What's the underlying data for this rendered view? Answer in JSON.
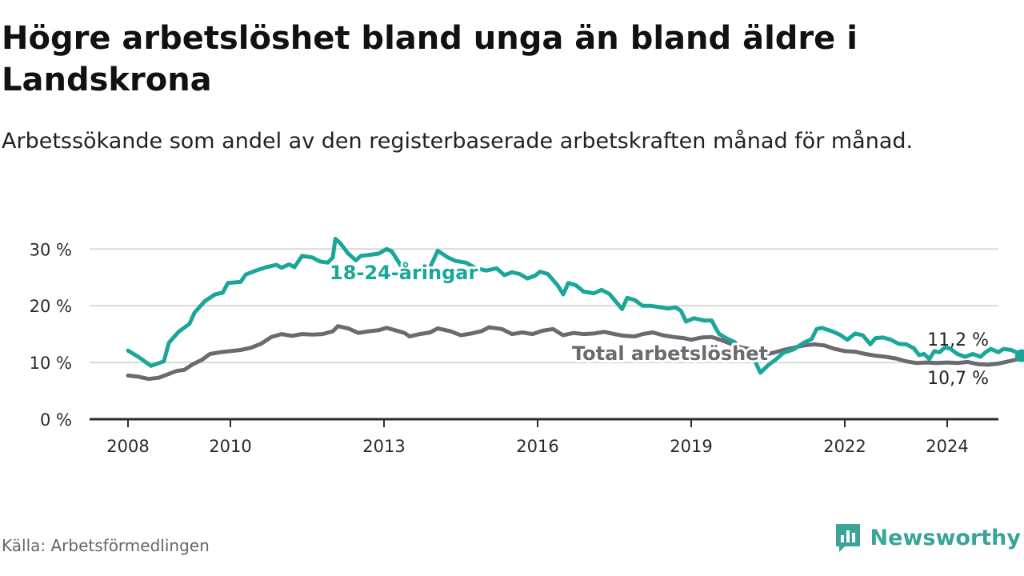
{
  "title": "Högre arbetslöshet bland unga än bland äldre i Landskrona",
  "subtitle": "Arbetssökande som andel av den registerbaserade arbetskraften månad för månad.",
  "source": "Källa: Arbetsförmedlingen",
  "brand": {
    "name": "Newsworthy",
    "icon": "newsworthy-logo-icon"
  },
  "colors": {
    "youth": "#1aa69a",
    "total": "#6b6a70",
    "grid": "#d9d9d9",
    "axis": "#2b2b2b"
  },
  "chart_data": {
    "type": "line",
    "y_ticks": [
      {
        "value": 0,
        "label": "0 %"
      },
      {
        "value": 10,
        "label": "10 %"
      },
      {
        "value": 20,
        "label": "20 %"
      },
      {
        "value": 30,
        "label": "30 %"
      }
    ],
    "x_ticks": [
      {
        "value": 2008,
        "label": "2008"
      },
      {
        "value": 2010,
        "label": "2010"
      },
      {
        "value": 2013,
        "label": "2013"
      },
      {
        "value": 2016,
        "label": "2016"
      },
      {
        "value": 2019,
        "label": "2019"
      },
      {
        "value": 2022,
        "label": "2022"
      },
      {
        "value": 2024,
        "label": "2024"
      }
    ],
    "xlim": [
      2007.25,
      2025.0
    ],
    "ylim": [
      0,
      33
    ],
    "series": [
      {
        "name": "18-24-åringar",
        "label": "18-24-åringar",
        "end_label": "11,2 %",
        "points": [
          [
            2008.0,
            12.1
          ],
          [
            2008.2,
            11.0
          ],
          [
            2008.45,
            9.4
          ],
          [
            2008.7,
            10.2
          ],
          [
            2008.8,
            13.5
          ],
          [
            2009.0,
            15.5
          ],
          [
            2009.2,
            16.8
          ],
          [
            2009.3,
            18.8
          ],
          [
            2009.5,
            20.8
          ],
          [
            2009.7,
            22.0
          ],
          [
            2009.85,
            22.3
          ],
          [
            2009.95,
            24.0
          ],
          [
            2010.2,
            24.2
          ],
          [
            2010.3,
            25.5
          ],
          [
            2010.5,
            26.2
          ],
          [
            2010.7,
            26.8
          ],
          [
            2010.9,
            27.2
          ],
          [
            2011.0,
            26.7
          ],
          [
            2011.15,
            27.3
          ],
          [
            2011.25,
            26.8
          ],
          [
            2011.4,
            28.8
          ],
          [
            2011.6,
            28.5
          ],
          [
            2011.75,
            27.8
          ],
          [
            2011.9,
            27.6
          ],
          [
            2012.0,
            28.5
          ],
          [
            2012.05,
            31.8
          ],
          [
            2012.15,
            31.0
          ],
          [
            2012.3,
            29.2
          ],
          [
            2012.45,
            28.0
          ],
          [
            2012.55,
            28.8
          ],
          [
            2012.75,
            29.0
          ],
          [
            2012.9,
            29.2
          ],
          [
            2013.05,
            30.0
          ],
          [
            2013.15,
            29.6
          ],
          [
            2013.3,
            27.5
          ],
          [
            2013.4,
            25.8
          ],
          [
            2013.6,
            26.3
          ],
          [
            2013.9,
            26.8
          ],
          [
            2014.05,
            29.7
          ],
          [
            2014.25,
            28.5
          ],
          [
            2014.4,
            27.9
          ],
          [
            2014.6,
            27.6
          ],
          [
            2014.8,
            26.6
          ],
          [
            2015.0,
            26.2
          ],
          [
            2015.2,
            26.6
          ],
          [
            2015.35,
            25.4
          ],
          [
            2015.5,
            25.9
          ],
          [
            2015.65,
            25.6
          ],
          [
            2015.8,
            24.8
          ],
          [
            2015.95,
            25.3
          ],
          [
            2016.05,
            26.0
          ],
          [
            2016.2,
            25.6
          ],
          [
            2016.4,
            23.5
          ],
          [
            2016.5,
            22.0
          ],
          [
            2016.6,
            24.0
          ],
          [
            2016.75,
            23.6
          ],
          [
            2016.9,
            22.5
          ],
          [
            2017.1,
            22.2
          ],
          [
            2017.25,
            22.8
          ],
          [
            2017.4,
            22.1
          ],
          [
            2017.55,
            20.5
          ],
          [
            2017.65,
            19.4
          ],
          [
            2017.75,
            21.4
          ],
          [
            2017.9,
            21.0
          ],
          [
            2018.05,
            20.0
          ],
          [
            2018.2,
            20.0
          ],
          [
            2018.35,
            19.8
          ],
          [
            2018.55,
            19.5
          ],
          [
            2018.7,
            19.7
          ],
          [
            2018.8,
            19.1
          ],
          [
            2018.9,
            17.2
          ],
          [
            2019.05,
            17.8
          ],
          [
            2019.25,
            17.4
          ],
          [
            2019.4,
            17.4
          ],
          [
            2019.5,
            15.7
          ],
          [
            2019.55,
            15.0
          ],
          [
            2019.7,
            14.2
          ],
          [
            2019.85,
            13.6
          ],
          [
            2020.0,
            11.5
          ],
          [
            2020.2,
            11.2
          ],
          [
            2020.35,
            8.2
          ],
          [
            2020.5,
            9.5
          ],
          [
            2020.65,
            10.5
          ],
          [
            2020.8,
            11.7
          ],
          [
            2021.0,
            12.3
          ],
          [
            2021.2,
            13.5
          ],
          [
            2021.35,
            14.1
          ],
          [
            2021.45,
            15.9
          ],
          [
            2021.55,
            16.1
          ],
          [
            2021.75,
            15.5
          ],
          [
            2021.9,
            14.9
          ],
          [
            2022.05,
            14.0
          ],
          [
            2022.2,
            15.1
          ],
          [
            2022.35,
            14.8
          ],
          [
            2022.5,
            13.2
          ],
          [
            2022.6,
            14.3
          ],
          [
            2022.75,
            14.4
          ],
          [
            2022.9,
            14.0
          ],
          [
            2023.05,
            13.3
          ],
          [
            2023.2,
            13.2
          ],
          [
            2023.35,
            12.5
          ],
          [
            2023.45,
            11.3
          ],
          [
            2023.55,
            11.5
          ],
          [
            2023.65,
            10.6
          ],
          [
            2023.75,
            12.0
          ],
          [
            2023.85,
            11.8
          ],
          [
            2023.95,
            12.6
          ],
          [
            2024.05,
            12.5
          ],
          [
            2024.2,
            11.5
          ],
          [
            2024.35,
            11.0
          ],
          [
            2024.5,
            11.5
          ],
          [
            2024.65,
            11.0
          ],
          [
            2024.75,
            11.8
          ],
          [
            2024.85,
            12.4
          ],
          [
            2025.0,
            11.8
          ],
          [
            2025.1,
            12.4
          ],
          [
            2025.25,
            12.2
          ],
          [
            2025.4,
            11.6
          ],
          [
            2025.45,
            11.2
          ]
        ]
      },
      {
        "name": "Total arbetslöshet",
        "label": "Total arbetslöshet",
        "end_label": "10,7 %",
        "points": [
          [
            2008.0,
            7.7
          ],
          [
            2008.2,
            7.5
          ],
          [
            2008.4,
            7.1
          ],
          [
            2008.6,
            7.3
          ],
          [
            2008.8,
            8.0
          ],
          [
            2008.95,
            8.5
          ],
          [
            2009.1,
            8.7
          ],
          [
            2009.25,
            9.6
          ],
          [
            2009.45,
            10.5
          ],
          [
            2009.6,
            11.5
          ],
          [
            2009.8,
            11.8
          ],
          [
            2010.0,
            12.0
          ],
          [
            2010.2,
            12.2
          ],
          [
            2010.4,
            12.6
          ],
          [
            2010.6,
            13.3
          ],
          [
            2010.8,
            14.5
          ],
          [
            2011.0,
            15.0
          ],
          [
            2011.2,
            14.7
          ],
          [
            2011.4,
            15.0
          ],
          [
            2011.6,
            14.9
          ],
          [
            2011.8,
            15.0
          ],
          [
            2012.0,
            15.5
          ],
          [
            2012.1,
            16.4
          ],
          [
            2012.3,
            16.0
          ],
          [
            2012.5,
            15.2
          ],
          [
            2012.7,
            15.5
          ],
          [
            2012.9,
            15.7
          ],
          [
            2013.05,
            16.1
          ],
          [
            2013.25,
            15.6
          ],
          [
            2013.4,
            15.2
          ],
          [
            2013.5,
            14.6
          ],
          [
            2013.7,
            15.0
          ],
          [
            2013.9,
            15.3
          ],
          [
            2014.05,
            16.0
          ],
          [
            2014.3,
            15.5
          ],
          [
            2014.5,
            14.8
          ],
          [
            2014.7,
            15.1
          ],
          [
            2014.9,
            15.5
          ],
          [
            2015.05,
            16.2
          ],
          [
            2015.3,
            15.9
          ],
          [
            2015.5,
            15.0
          ],
          [
            2015.7,
            15.3
          ],
          [
            2015.9,
            15.0
          ],
          [
            2016.1,
            15.6
          ],
          [
            2016.3,
            15.9
          ],
          [
            2016.5,
            14.8
          ],
          [
            2016.7,
            15.2
          ],
          [
            2016.9,
            15.0
          ],
          [
            2017.1,
            15.1
          ],
          [
            2017.3,
            15.4
          ],
          [
            2017.5,
            15.0
          ],
          [
            2017.7,
            14.7
          ],
          [
            2017.9,
            14.6
          ],
          [
            2018.05,
            15.0
          ],
          [
            2018.25,
            15.3
          ],
          [
            2018.45,
            14.8
          ],
          [
            2018.65,
            14.5
          ],
          [
            2018.85,
            14.3
          ],
          [
            2019.0,
            14.0
          ],
          [
            2019.2,
            14.4
          ],
          [
            2019.4,
            14.5
          ],
          [
            2019.6,
            13.9
          ],
          [
            2019.8,
            13.2
          ],
          [
            2020.0,
            12.6
          ],
          [
            2020.2,
            12.3
          ],
          [
            2020.4,
            11.3
          ],
          [
            2020.6,
            11.7
          ],
          [
            2020.8,
            12.2
          ],
          [
            2021.0,
            12.6
          ],
          [
            2021.2,
            13.0
          ],
          [
            2021.4,
            13.2
          ],
          [
            2021.6,
            13.0
          ],
          [
            2021.8,
            12.4
          ],
          [
            2022.0,
            12.0
          ],
          [
            2022.2,
            11.9
          ],
          [
            2022.4,
            11.5
          ],
          [
            2022.6,
            11.2
          ],
          [
            2022.8,
            11.0
          ],
          [
            2023.0,
            10.7
          ],
          [
            2023.2,
            10.2
          ],
          [
            2023.4,
            9.9
          ],
          [
            2023.6,
            10.0
          ],
          [
            2023.8,
            9.9
          ],
          [
            2024.0,
            10.0
          ],
          [
            2024.2,
            9.9
          ],
          [
            2024.4,
            10.1
          ],
          [
            2024.6,
            9.7
          ],
          [
            2024.8,
            9.6
          ],
          [
            2025.0,
            9.8
          ],
          [
            2025.2,
            10.2
          ],
          [
            2025.35,
            10.5
          ],
          [
            2025.45,
            10.7
          ]
        ]
      }
    ],
    "annotations": [
      "18-24-åringar",
      "Total arbetslöshet",
      "11,2 %",
      "10,7 %"
    ]
  }
}
